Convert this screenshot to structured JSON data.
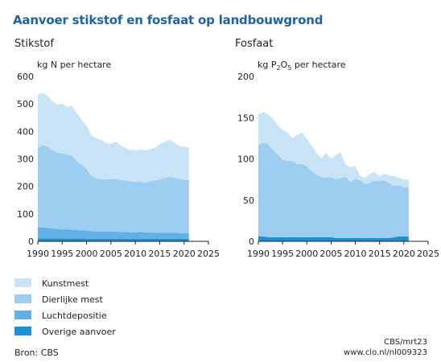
{
  "page": {
    "title": "Aanvoer stikstof en fosfaat op landbouwgrond",
    "source": "Bron: CBS",
    "credit_line1": "CBS/mrt23",
    "credit_line2": "www.clo.nl/nl009323"
  },
  "colors": {
    "kunstmest": "#c9e3f7",
    "dierlijke_mest": "#9dcdf0",
    "luchtdepositie": "#62b0e5",
    "overige_aanvoer": "#1e8fd5",
    "axis": "#222222"
  },
  "legend": [
    {
      "label": "Kunstmest",
      "color_key": "kunstmest"
    },
    {
      "label": "Dierlijke mest",
      "color_key": "dierlijke_mest"
    },
    {
      "label": "Luchtdepositie",
      "color_key": "luchtdepositie"
    },
    {
      "label": "Overige aanvoer",
      "color_key": "overige_aanvoer"
    }
  ],
  "chart_data": [
    {
      "type": "area",
      "stacked": true,
      "title": "Stikstof",
      "ylabel_pre": "kg N per hectare",
      "x": [
        1990,
        1991,
        1992,
        1993,
        1994,
        1995,
        1996,
        1997,
        1998,
        1999,
        2000,
        2001,
        2002,
        2003,
        2004,
        2005,
        2006,
        2007,
        2008,
        2009,
        2010,
        2011,
        2012,
        2013,
        2014,
        2015,
        2016,
        2017,
        2018,
        2019,
        2020,
        2021
      ],
      "xlim": [
        1990,
        2025
      ],
      "xticks": [
        1990,
        1995,
        2000,
        2005,
        2010,
        2015,
        2020,
        2025
      ],
      "ylim": [
        0,
        600
      ],
      "yticks": [
        0,
        100,
        200,
        300,
        400,
        500,
        600
      ],
      "series": [
        {
          "name": "Overige aanvoer",
          "color_key": "overige_aanvoer",
          "values": [
            11,
            11,
            11,
            11,
            10,
            10,
            10,
            10,
            10,
            10,
            10,
            9,
            9,
            9,
            9,
            9,
            9,
            9,
            9,
            9,
            9,
            9,
            9,
            9,
            9,
            9,
            9,
            9,
            9,
            9,
            9,
            9
          ]
        },
        {
          "name": "Luchtdepositie",
          "color_key": "luchtdepositie",
          "values": [
            40,
            39,
            38,
            36,
            35,
            33,
            34,
            32,
            31,
            30,
            29,
            28,
            27,
            27,
            26,
            26,
            26,
            25,
            25,
            24,
            24,
            25,
            24,
            23,
            23,
            23,
            22,
            22,
            22,
            21,
            21,
            20
          ]
        },
        {
          "name": "Dierlijke mest",
          "color_key": "dierlijke_mest",
          "values": [
            290,
            300,
            295,
            287,
            278,
            276,
            273,
            270,
            250,
            240,
            225,
            200,
            193,
            190,
            190,
            192,
            193,
            190,
            187,
            185,
            184,
            183,
            180,
            185,
            190,
            192,
            200,
            203,
            200,
            197,
            195,
            193
          ]
        },
        {
          "name": "Kunstmest",
          "color_key": "kunstmest",
          "values": [
            192,
            191,
            185,
            176,
            175,
            181,
            173,
            180,
            175,
            162,
            156,
            148,
            144,
            144,
            133,
            128,
            135,
            125,
            118,
            114,
            114,
            117,
            117,
            118,
            118,
            130,
            130,
            136,
            129,
            120,
            120,
            118
          ]
        }
      ]
    },
    {
      "type": "area",
      "stacked": true,
      "title": "Fosfaat",
      "ylabel_pre": "kg P",
      "ylabel_sub1": "2",
      "ylabel_mid": "O",
      "ylabel_sub2": "5",
      "ylabel_post": " per hectare",
      "x": [
        1990,
        1991,
        1992,
        1993,
        1994,
        1995,
        1996,
        1997,
        1998,
        1999,
        2000,
        2001,
        2002,
        2003,
        2004,
        2005,
        2006,
        2007,
        2008,
        2009,
        2010,
        2011,
        2012,
        2013,
        2014,
        2015,
        2016,
        2017,
        2018,
        2019,
        2020,
        2021
      ],
      "xlim": [
        1990,
        2025
      ],
      "xticks": [
        1990,
        1995,
        2000,
        2005,
        2010,
        2015,
        2020,
        2025
      ],
      "ylim": [
        0,
        200
      ],
      "yticks": [
        0,
        50,
        100,
        150,
        200
      ],
      "series": [
        {
          "name": "Overige aanvoer",
          "color_key": "overige_aanvoer",
          "values": [
            6,
            6,
            5,
            5,
            5,
            5,
            5,
            5,
            5,
            5,
            5,
            5,
            5,
            5,
            5,
            5,
            4,
            4,
            4,
            4,
            4,
            4,
            4,
            4,
            4,
            4,
            4,
            4,
            5,
            6,
            6,
            6
          ]
        },
        {
          "name": "Luchtdepositie",
          "color_key": "luchtdepositie",
          "values": [
            0,
            0,
            0,
            0,
            0,
            0,
            0,
            0,
            0,
            0,
            0,
            0,
            0,
            0,
            0,
            0,
            0,
            0,
            0,
            0,
            0,
            0,
            0,
            0,
            0,
            0,
            0,
            0,
            0,
            0,
            0,
            0
          ]
        },
        {
          "name": "Dierlijke mest",
          "color_key": "dierlijke_mest",
          "values": [
            111,
            114,
            113,
            106,
            100,
            94,
            93,
            92,
            89,
            89,
            86,
            80,
            76,
            73,
            72,
            73,
            71,
            73,
            74,
            68,
            72,
            70,
            65,
            67,
            69,
            69,
            70,
            67,
            62,
            62,
            60,
            59
          ]
        },
        {
          "name": "Kunstmest",
          "color_key": "kunstmest",
          "values": [
            37,
            37,
            36,
            38,
            36,
            36,
            34,
            28,
            35,
            38,
            34,
            31,
            26,
            23,
            30,
            22,
            30,
            31,
            15,
            18,
            15,
            5,
            8,
            11,
            11,
            6,
            8,
            9,
            12,
            9,
            9,
            10
          ]
        }
      ]
    }
  ]
}
